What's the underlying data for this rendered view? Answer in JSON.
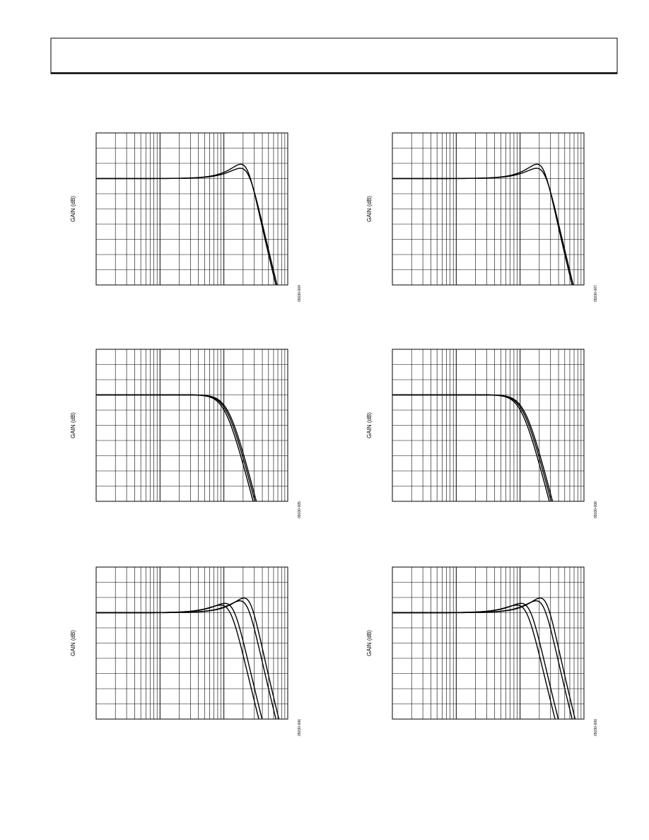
{
  "figures": [
    {
      "y_label": "GAIN (dB)",
      "figure_id": "05030-004"
    },
    {
      "y_label": "GAIN (dB)",
      "figure_id": "05030-007"
    },
    {
      "y_label": "GAIN (dB)",
      "figure_id": "05030-005"
    },
    {
      "y_label": "GAIN (dB)",
      "figure_id": "05030-008"
    },
    {
      "y_label": "GAIN (dB)",
      "figure_id": "05030-006"
    },
    {
      "y_label": "GAIN (dB)",
      "figure_id": "05030-009"
    }
  ]
}
